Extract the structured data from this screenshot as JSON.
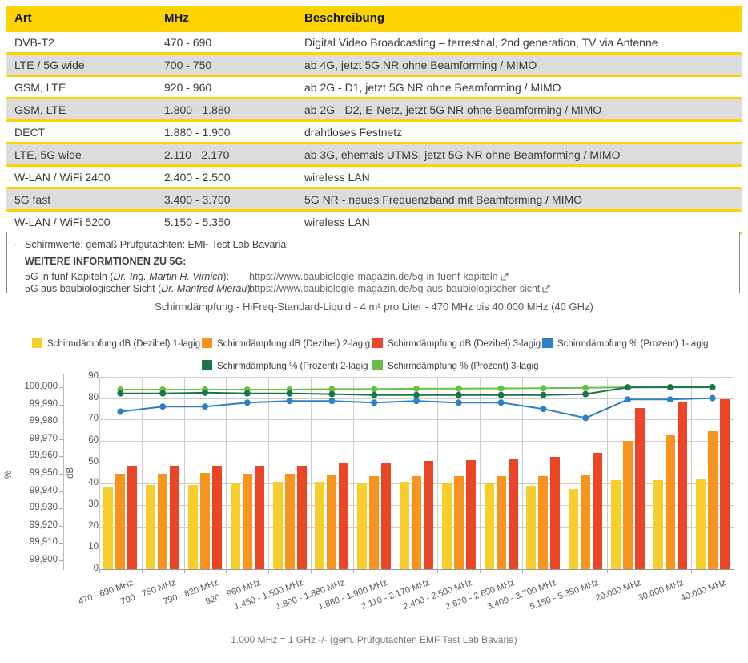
{
  "colors": {
    "table_yellow": "#FDD400",
    "row_alt_gray": "#DCDCDC",
    "row_white": "#FFFFFF"
  },
  "table": {
    "headers": [
      {
        "label": "Art"
      },
      {
        "label": "MHz"
      },
      {
        "label": "Beschreibung"
      }
    ],
    "rows": [
      {
        "art": "DVB-T2",
        "mhz": "470 - 690",
        "beschreibung": "Digital Video Broadcasting – terrestrial, 2nd generation, TV via Antenne"
      },
      {
        "art": "LTE / 5G wide",
        "mhz": "700 - 750",
        "beschreibung": "ab 4G, jetzt 5G NR ohne Beamforming / MIMO"
      },
      {
        "art": "GSM, LTE",
        "mhz": "920 - 960",
        "beschreibung": "ab 2G - D1, jetzt 5G NR ohne Beamforming / MIMO"
      },
      {
        "art": "GSM, LTE",
        "mhz": "1.800 - 1.880",
        "beschreibung": "ab 2G - D2, E-Netz, jetzt 5G NR ohne Beamforming / MIMO"
      },
      {
        "art": "DECT",
        "mhz": "1.880 - 1.900",
        "beschreibung": "drahtloses Festnetz"
      },
      {
        "art": "LTE, 5G wide",
        "mhz": "2.110 - 2.170",
        "beschreibung": "ab 3G, ehemals UTMS, jetzt 5G NR ohne Beamforming / MIMO"
      },
      {
        "art": "W-LAN / WiFi 2400",
        "mhz": "2.400 - 2.500",
        "beschreibung": "wireless LAN"
      },
      {
        "art": "5G fast",
        "mhz": "3.400 - 3.700",
        "beschreibung": "5G NR - neues Frequenzband mit Beamforming / MIMO"
      },
      {
        "art": "W-LAN / WiFi 5200",
        "mhz": "5.150 - 5.350",
        "beschreibung": "wireless LAN"
      }
    ]
  },
  "notes": {
    "bullet": "·",
    "line1": "Schirmwerte: gemäß Prüfgutachten: EMF Test Lab Bavaria",
    "heading": "WEITERE INFORMTIONEN ZU 5G:",
    "links": [
      {
        "label_pre": "5G in fünf Kapiteln (",
        "label_italic": "Dr.-Ing. Martin H. Virnich",
        "label_post": "):",
        "url": "https://www.baubiologie-magazin.de/5g-in-fuenf-kapiteln"
      },
      {
        "label_pre": "5G aus baubiologischer Sicht (",
        "label_italic": "Dr. Manfred Mierau",
        "label_post": "):",
        "url": "https://www.baubiologie-magazin.de/5g-aus-baubiologischer-sicht"
      }
    ]
  },
  "chart_data": {
    "type": "bar+line",
    "title": "Schirmdämpfung - HiFreq-Standard-Liquid - 4 m² pro Liter - 470 MHz bis 40.000 MHz (40 GHz)",
    "footnote": "1.000 MHz = 1 GHz -/- (gem. Prüfgutachten EMF Test Lab Bavaria)",
    "legend_position": "top",
    "grid": true,
    "categories": [
      "470 - 690 MHz",
      "700 - 750 MHz",
      "790 - 820 MHz",
      "920 - 960 MHz",
      "1.450 - 1.500 MHz",
      "1.800 - 1.880 MHz",
      "1.880 - 1.900 MHz",
      "2.110 - 2.170 MHz",
      "2.400 - 2.500 MHz",
      "2.620 - 2.690 MHz",
      "3.400 - 3.700 MHz",
      "5.150 - 5.350 MHz",
      "20.000 MHz",
      "30.000 MHz",
      "40.000 MHz"
    ],
    "bar_series": [
      {
        "name": "Schirmdämpfung dB (Dezibel) 1-lagig",
        "color": "#F7CE2B",
        "axis": "dB",
        "values": [
          38.5,
          39.5,
          39.5,
          40.5,
          41,
          41,
          40.5,
          41,
          40.5,
          40.5,
          39,
          37.5,
          41.5,
          41.5,
          42
        ]
      },
      {
        "name": "Schirmdämpfung dB (Dezibel) 2-lagig",
        "color": "#F6941D",
        "axis": "dB",
        "values": [
          44.5,
          44.5,
          45,
          44.5,
          44.5,
          44,
          43.5,
          43.5,
          43.5,
          43.5,
          43.5,
          44,
          60,
          63,
          65
        ]
      },
      {
        "name": "Schirmdämpfung dB (Dezibel) 3-lagig",
        "color": "#EA4526",
        "axis": "dB",
        "values": [
          48.5,
          48.5,
          48.5,
          48.5,
          48.5,
          49.5,
          49.5,
          50.5,
          51,
          51.5,
          52.5,
          54.5,
          75.5,
          78.5,
          79.5
        ]
      }
    ],
    "line_series": [
      {
        "name": "Schirmdämpfung % (Prozent) 1-lagig",
        "color": "#2E80C6",
        "axis": "%",
        "values": [
          99.98588,
          99.98879,
          99.98879,
          99.99109,
          99.99206,
          99.99206,
          99.99109,
          99.99206,
          99.99109,
          99.99109,
          99.98741,
          99.98222,
          99.99292,
          99.99292,
          99.99369
        ]
      },
      {
        "name": "Schirmdämpfung % (Prozent) 2-lagig",
        "color": "#1C7549",
        "axis": "%",
        "values": [
          99.99645,
          99.99645,
          99.99684,
          99.99645,
          99.99645,
          99.99602,
          99.99553,
          99.99553,
          99.99553,
          99.99553,
          99.99553,
          99.99602,
          99.9999,
          99.99995,
          99.99997
        ]
      },
      {
        "name": "Schirmdämpfung % (Prozent) 3-lagig",
        "color": "#69BF45",
        "axis": "%",
        "values": [
          99.99859,
          99.99859,
          99.99859,
          99.99859,
          99.99859,
          99.99888,
          99.99888,
          99.99911,
          99.99921,
          99.99929,
          99.99944,
          99.99965,
          99.99999,
          99.99999,
          99.99999
        ]
      }
    ],
    "y_left_percent": {
      "label": "%",
      "min": 99.9,
      "max": 100.0,
      "tick_labels": [
        "100,000",
        "99,990",
        "99,980",
        "99,970",
        "99,960",
        "99,950",
        "99,940",
        "99,930",
        "99,920",
        "99,910",
        "99,900"
      ]
    },
    "y_inner_db": {
      "label": "dB",
      "min": 0,
      "max": 90,
      "tick_labels": [
        "90",
        "80",
        "70",
        "60",
        "50",
        "40",
        "30",
        "20",
        "10",
        "0"
      ]
    }
  }
}
